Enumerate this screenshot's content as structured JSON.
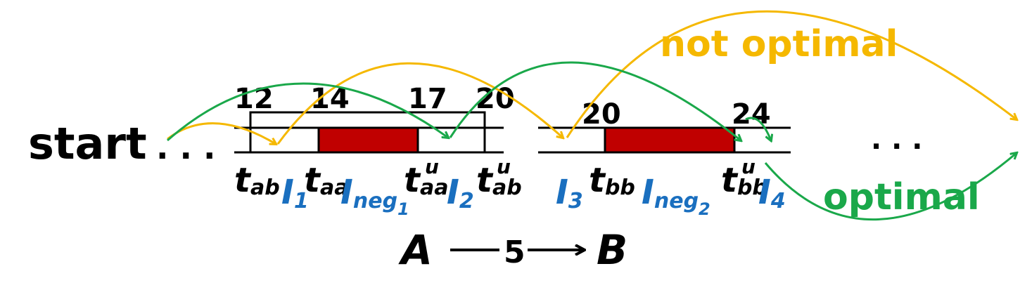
{
  "start_label": "start",
  "ellipsis_left": ". . .",
  "ellipsis_right": ". . .",
  "ticks_a": [
    "12",
    "14",
    "17",
    "20"
  ],
  "ticks_b": [
    "20",
    "24"
  ],
  "t_base": "t",
  "labels_a": {
    "t_ab_sub": "ab",
    "t_aa_sub": "aa",
    "t_aa_u_sub": "aa",
    "t_ab_u_sub": "ab",
    "u_sup": "u"
  },
  "labels_b": {
    "t_bb_sub": "bb",
    "t_bb_u_sub": "bb",
    "u_sup": "u"
  },
  "intervals": {
    "I_base": "I",
    "i1_sub": "1",
    "ineg1_sub": "neg",
    "ineg1_subsub": "1",
    "i2_sub": "2",
    "i3_sub": "3",
    "ineg2_sub": "neg",
    "ineg2_subsub": "2",
    "i4_sub": "4"
  },
  "edge": {
    "from": "A",
    "weight": "5",
    "to": "B"
  },
  "annotations": {
    "not_optimal": "not optimal",
    "optimal": "optimal"
  },
  "colors": {
    "blocked_fill": "#c00000",
    "green_arrow": "#1aa84a",
    "yellow_arrow": "#f5b800",
    "blue_text": "#1a6fbf"
  }
}
